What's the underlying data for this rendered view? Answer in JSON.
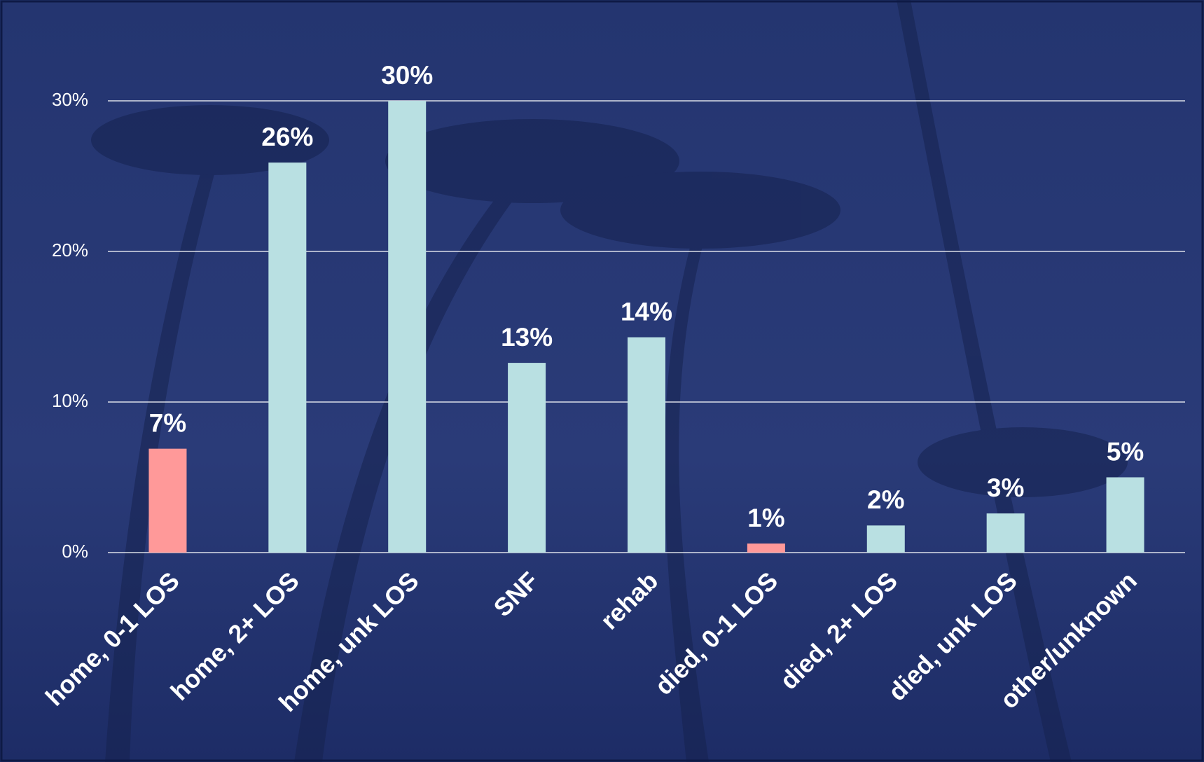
{
  "chart_data": {
    "type": "bar",
    "categories": [
      "home, 0-1 LOS",
      "home, 2+ LOS",
      "home, unk LOS",
      "SNF",
      "rehab",
      "died, 0-1 LOS",
      "died, 2+ LOS",
      "died, unk LOS",
      "other/unknown"
    ],
    "values": [
      6.9,
      25.9,
      30,
      12.6,
      14.3,
      0.6,
      1.8,
      2.6,
      5.0
    ],
    "value_labels": [
      "7%",
      "26%",
      "30%",
      "13%",
      "14%",
      "1%",
      "2%",
      "3%",
      "5%"
    ],
    "colors": [
      "#ff9999",
      "#b9e0e2",
      "#b9e0e2",
      "#b9e0e2",
      "#b9e0e2",
      "#ff9999",
      "#b9e0e2",
      "#b9e0e2",
      "#b9e0e2"
    ],
    "ylim": [
      0,
      30
    ],
    "yticks": [
      {
        "value": 0,
        "label": "0%"
      },
      {
        "value": 10,
        "label": "10%"
      },
      {
        "value": 20,
        "label": "20%"
      },
      {
        "value": 30,
        "label": "30%"
      }
    ],
    "grid": true
  }
}
